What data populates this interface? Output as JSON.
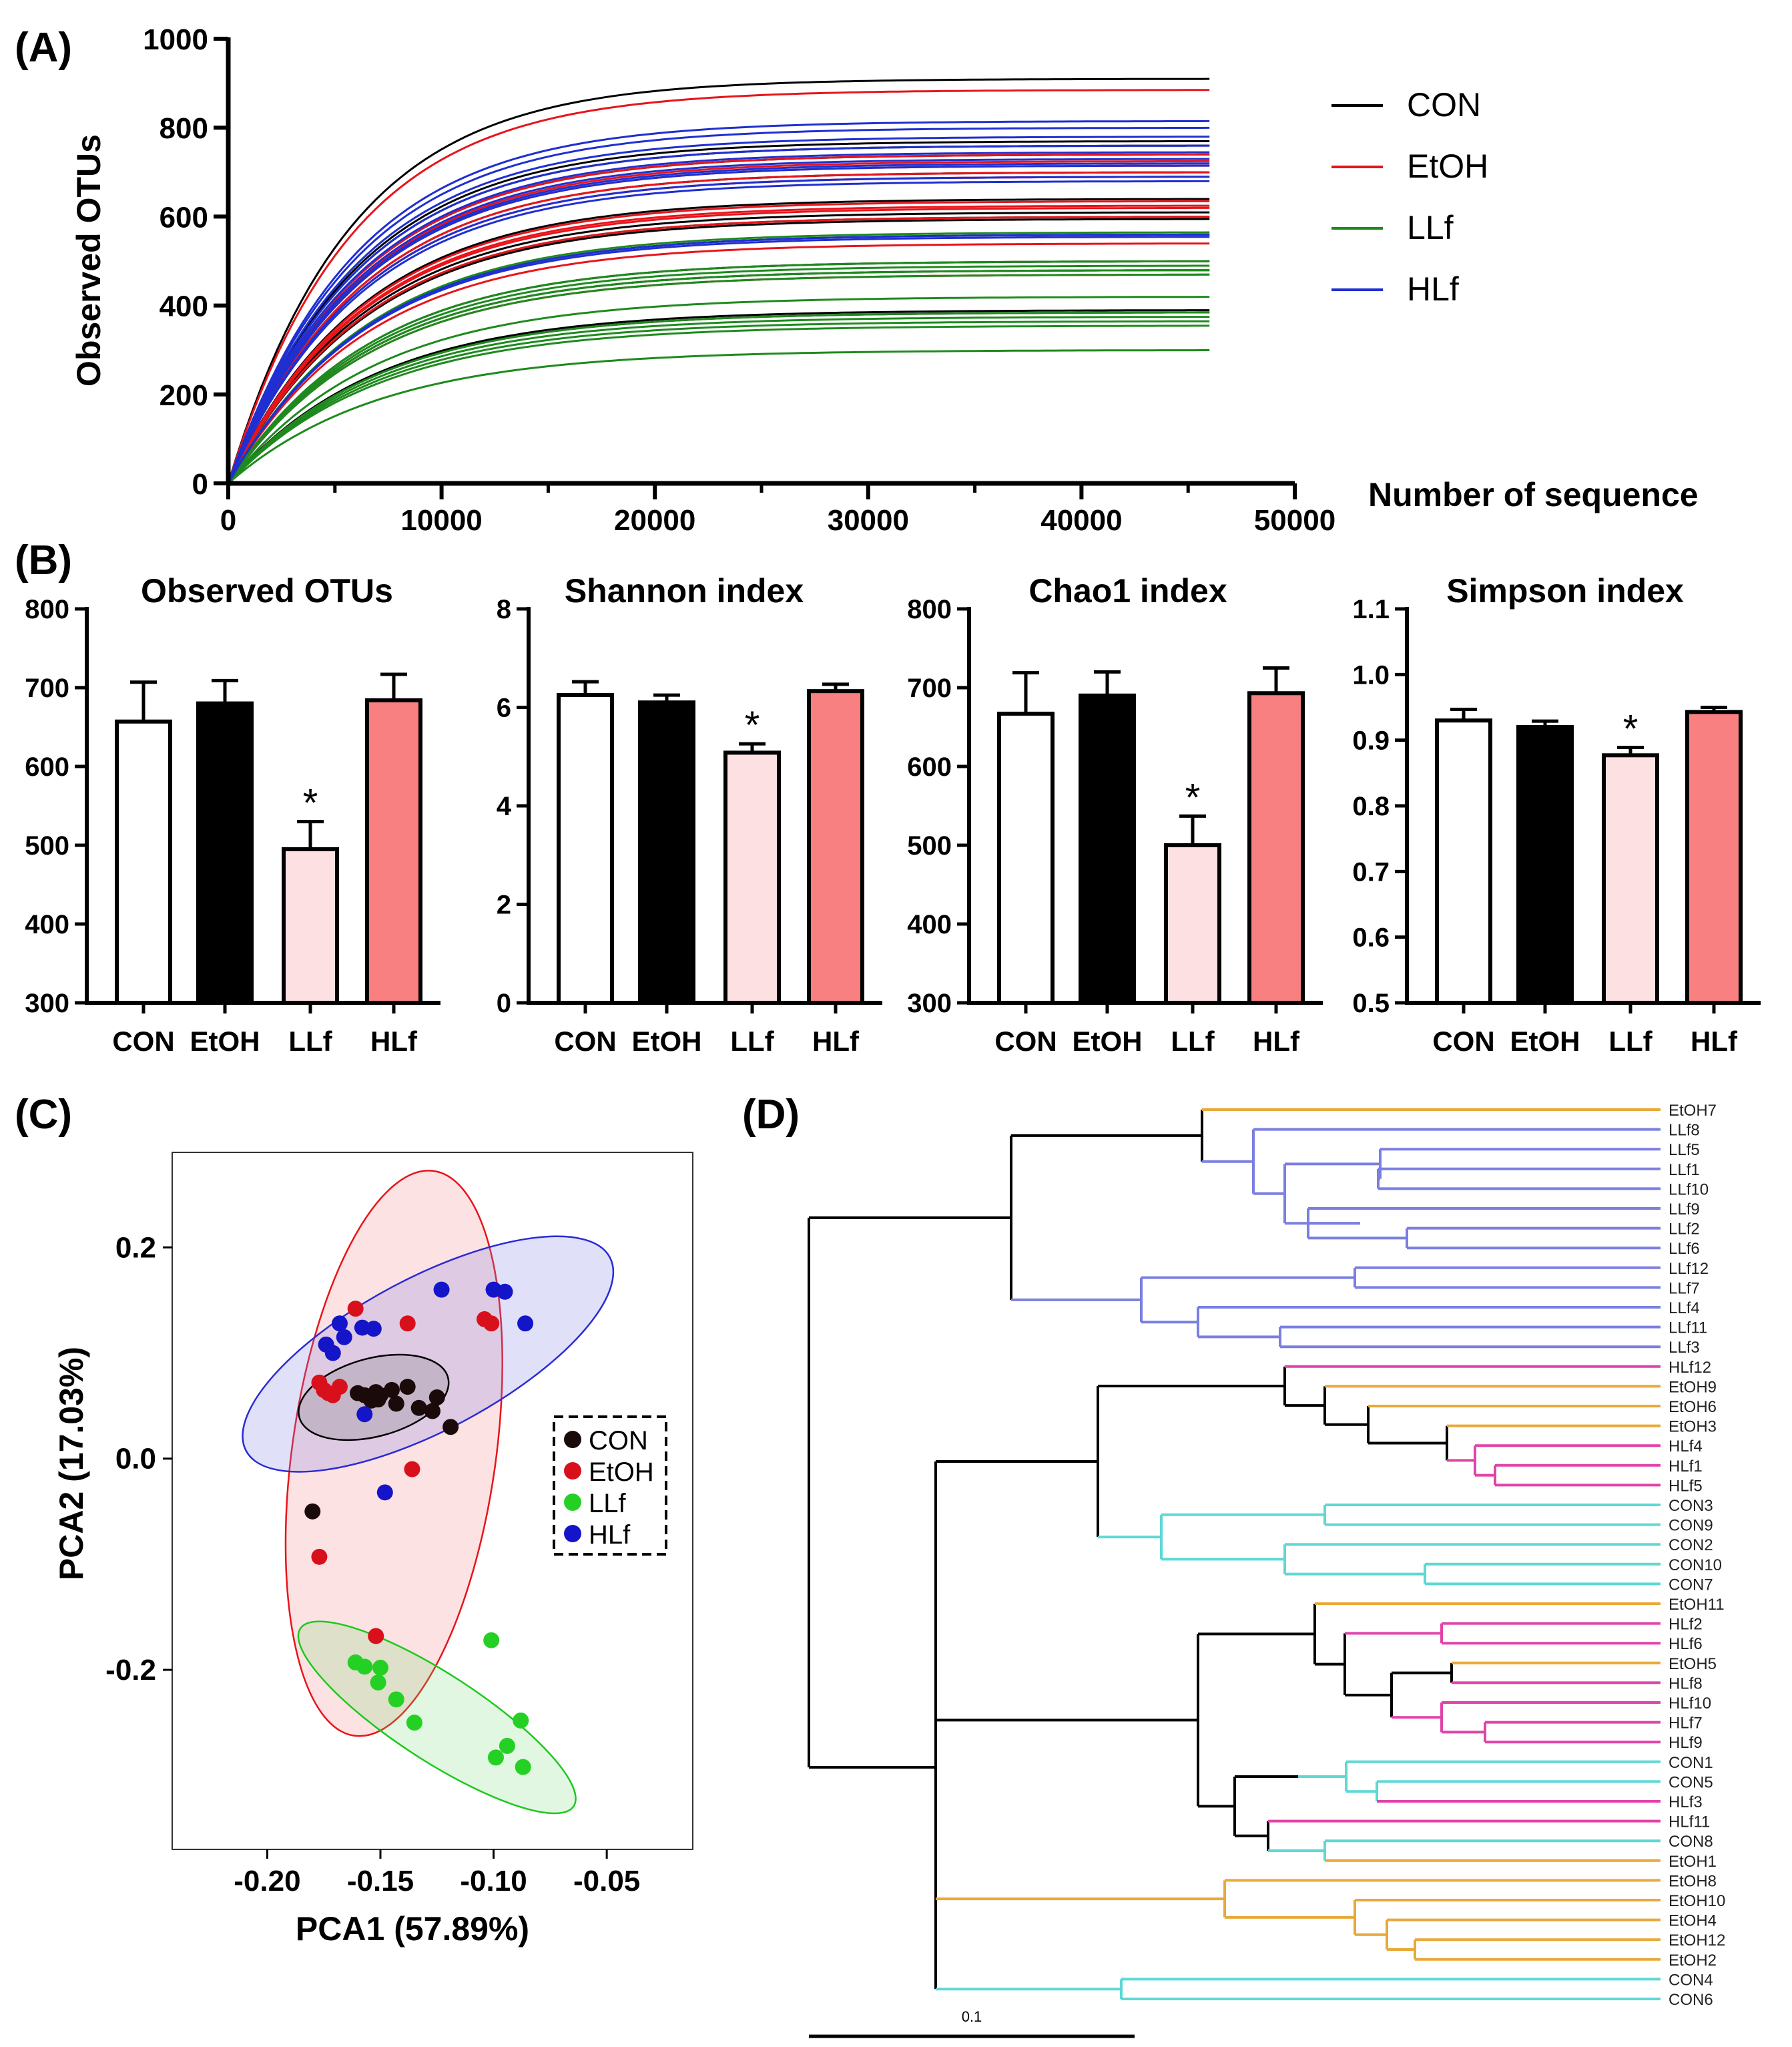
{
  "panel_labels": {
    "a": "(A)",
    "b": "(B)",
    "c": "(C)",
    "d": "(D)"
  },
  "group_colors": {
    "CON": "#000000",
    "EtOH": "#e8141b",
    "LLf": "#1e8a1e",
    "HLf": "#1f2fd1"
  },
  "chart_data": [
    {
      "id": "A",
      "type": "line",
      "title": "",
      "xlabel": "Number of sequence",
      "ylabel": "Observed OTUs",
      "xlim": [
        0,
        50000
      ],
      "ylim": [
        0,
        1000
      ],
      "xticks": [
        "0",
        "10000",
        "20000",
        "30000",
        "40000",
        "50000"
      ],
      "yticks": [
        "0",
        "200",
        "400",
        "600",
        "800",
        "1000"
      ],
      "x_max_depth": 46000,
      "legend": [
        "CON",
        "EtOH",
        "LLf",
        "HLf"
      ],
      "series": [
        {
          "group": "CON",
          "plateaus": [
            910,
            770,
            760,
            740,
            700,
            640,
            610,
            600,
            595,
            560,
            500,
            480,
            390,
            385
          ]
        },
        {
          "group": "EtOH",
          "plateaus": [
            885,
            740,
            725,
            715,
            700,
            690,
            635,
            625,
            620,
            600,
            540,
            470
          ]
        },
        {
          "group": "LLf",
          "plateaus": [
            565,
            500,
            490,
            480,
            470,
            420,
            385,
            375,
            365,
            355,
            300
          ]
        },
        {
          "group": "HLf",
          "plateaus": [
            815,
            800,
            780,
            760,
            745,
            730,
            720,
            715,
            690,
            680,
            560,
            555
          ]
        }
      ]
    },
    {
      "id": "B1",
      "type": "bar",
      "title": "Observed OTUs",
      "categories": [
        "CON",
        "EtOH",
        "LLf",
        "HLf"
      ],
      "values": [
        657,
        680,
        495,
        684
      ],
      "errors": [
        50,
        29,
        35,
        33
      ],
      "ylim": [
        300,
        800
      ],
      "yticks": [
        "300",
        "400",
        "500",
        "600",
        "700",
        "800"
      ],
      "significance": [
        "",
        "",
        "*",
        ""
      ]
    },
    {
      "id": "B2",
      "type": "bar",
      "title": "Shannon index",
      "categories": [
        "CON",
        "EtOH",
        "LLf",
        "HLf"
      ],
      "values": [
        6.25,
        6.1,
        5.08,
        6.33
      ],
      "errors": [
        0.27,
        0.15,
        0.18,
        0.14
      ],
      "ylim": [
        0,
        8
      ],
      "yticks": [
        "0",
        "2",
        "4",
        "6",
        "8"
      ],
      "significance": [
        "",
        "",
        "*",
        ""
      ]
    },
    {
      "id": "B3",
      "type": "bar",
      "title": "Chao1 index",
      "categories": [
        "CON",
        "EtOH",
        "LLf",
        "HLf"
      ],
      "values": [
        667,
        690,
        500,
        693
      ],
      "errors": [
        52,
        30,
        37,
        32
      ],
      "ylim": [
        300,
        800
      ],
      "yticks": [
        "300",
        "400",
        "500",
        "600",
        "700",
        "800"
      ],
      "significance": [
        "",
        "",
        "*",
        ""
      ]
    },
    {
      "id": "B4",
      "type": "bar",
      "title": "Simpson index",
      "categories": [
        "CON",
        "EtOH",
        "LLf",
        "HLf"
      ],
      "values": [
        0.93,
        0.92,
        0.877,
        0.943
      ],
      "errors": [
        0.017,
        0.009,
        0.012,
        0.007
      ],
      "ylim": [
        0.5,
        1.1
      ],
      "yticks": [
        "0.5",
        "0.6",
        "0.7",
        "0.8",
        "0.9",
        "1.0",
        "1.1"
      ],
      "significance": [
        "",
        "",
        "*",
        ""
      ]
    },
    {
      "id": "C",
      "type": "scatter",
      "xlabel": "PCA1 (57.89%)",
      "ylabel": "PCA2 (17.03%)",
      "xlim": [
        -0.242,
        -0.012
      ],
      "ylim": [
        -0.37,
        0.29
      ],
      "xticks": [
        -0.2,
        -0.15,
        -0.1,
        -0.05
      ],
      "xtick_labels": [
        "-0.20",
        "-0.15",
        "-0.10",
        "-0.05"
      ],
      "yticks": [
        -0.2,
        0.0,
        0.2
      ],
      "ytick_labels": [
        "-0.2",
        "0.0",
        "0.2"
      ],
      "legend": [
        "CON",
        "EtOH",
        "LLf",
        "HLf"
      ],
      "points": {
        "CON": [
          [
            -0.16,
            0.062
          ],
          [
            -0.157,
            0.06
          ],
          [
            -0.154,
            0.055
          ],
          [
            -0.152,
            0.063
          ],
          [
            -0.151,
            0.056
          ],
          [
            -0.145,
            0.065
          ],
          [
            -0.143,
            0.052
          ],
          [
            -0.138,
            0.068
          ],
          [
            -0.133,
            0.048
          ],
          [
            -0.125,
            0.058
          ],
          [
            -0.119,
            0.03
          ],
          [
            -0.127,
            0.045
          ],
          [
            -0.15,
            0.06
          ],
          [
            -0.18,
            -0.05
          ]
        ],
        "EtOH": [
          [
            -0.161,
            0.142
          ],
          [
            -0.177,
            0.072
          ],
          [
            -0.175,
            0.065
          ],
          [
            -0.173,
            0.062
          ],
          [
            -0.171,
            0.06
          ],
          [
            -0.168,
            0.068
          ],
          [
            -0.138,
            0.128
          ],
          [
            -0.104,
            0.132
          ],
          [
            -0.101,
            0.128
          ],
          [
            -0.136,
            -0.01
          ],
          [
            -0.177,
            -0.093
          ],
          [
            -0.152,
            -0.168
          ]
        ],
        "LLf": [
          [
            -0.161,
            -0.193
          ],
          [
            -0.157,
            -0.197
          ],
          [
            -0.15,
            -0.198
          ],
          [
            -0.151,
            -0.212
          ],
          [
            -0.143,
            -0.228
          ],
          [
            -0.135,
            -0.25
          ],
          [
            -0.101,
            -0.172
          ],
          [
            -0.088,
            -0.248
          ],
          [
            -0.094,
            -0.272
          ],
          [
            -0.099,
            -0.283
          ],
          [
            -0.087,
            -0.292
          ]
        ],
        "HLf": [
          [
            -0.168,
            0.128
          ],
          [
            -0.166,
            0.115
          ],
          [
            -0.158,
            0.124
          ],
          [
            -0.153,
            0.123
          ],
          [
            -0.174,
            0.108
          ],
          [
            -0.171,
            0.1
          ],
          [
            -0.123,
            0.16
          ],
          [
            -0.1,
            0.16
          ],
          [
            -0.095,
            0.158
          ],
          [
            -0.086,
            0.128
          ],
          [
            -0.157,
            0.042
          ],
          [
            -0.148,
            -0.032
          ]
        ]
      },
      "ellipses": [
        {
          "group": "EtOH",
          "cx": -0.144,
          "cy": 0.005,
          "rx": 0.045,
          "ry": 0.27,
          "angle_deg": 8
        },
        {
          "group": "HLf",
          "cx": -0.129,
          "cy": 0.099,
          "rx": 0.091,
          "ry": 0.072,
          "angle_deg": -28
        },
        {
          "group": "CON",
          "cx": -0.153,
          "cy": 0.058,
          "rx": 0.034,
          "ry": 0.037,
          "angle_deg": -15
        },
        {
          "group": "LLf",
          "cx": -0.125,
          "cy": -0.245,
          "rx": 0.072,
          "ry": 0.041,
          "angle_deg": 33
        }
      ]
    },
    {
      "id": "D",
      "type": "dendrogram",
      "scale_label": "0.1",
      "leaves": [
        {
          "label": "EtOH7",
          "group": "EtOH"
        },
        {
          "label": "LLf8",
          "group": "LLf"
        },
        {
          "label": "LLf5",
          "group": "LLf"
        },
        {
          "label": "LLf1",
          "group": "LLf"
        },
        {
          "label": "LLf10",
          "group": "LLf"
        },
        {
          "label": "LLf9",
          "group": "LLf"
        },
        {
          "label": "LLf2",
          "group": "LLf"
        },
        {
          "label": "LLf6",
          "group": "LLf"
        },
        {
          "label": "LLf12",
          "group": "LLf"
        },
        {
          "label": "LLf7",
          "group": "LLf"
        },
        {
          "label": "LLf4",
          "group": "LLf"
        },
        {
          "label": "LLf11",
          "group": "LLf"
        },
        {
          "label": "LLf3",
          "group": "LLf"
        },
        {
          "label": "HLf12",
          "group": "HLf"
        },
        {
          "label": "EtOH9",
          "group": "EtOH"
        },
        {
          "label": "EtOH6",
          "group": "EtOH"
        },
        {
          "label": "EtOH3",
          "group": "EtOH"
        },
        {
          "label": "HLf4",
          "group": "HLf"
        },
        {
          "label": "HLf1",
          "group": "HLf"
        },
        {
          "label": "HLf5",
          "group": "HLf"
        },
        {
          "label": "CON3",
          "group": "CON"
        },
        {
          "label": "CON9",
          "group": "CON"
        },
        {
          "label": "CON2",
          "group": "CON"
        },
        {
          "label": "CON10",
          "group": "CON"
        },
        {
          "label": "CON7",
          "group": "CON"
        },
        {
          "label": "EtOH11",
          "group": "EtOH"
        },
        {
          "label": "HLf2",
          "group": "HLf"
        },
        {
          "label": "HLf6",
          "group": "HLf"
        },
        {
          "label": "EtOH5",
          "group": "EtOH"
        },
        {
          "label": "HLf8",
          "group": "HLf"
        },
        {
          "label": "HLf10",
          "group": "HLf"
        },
        {
          "label": "HLf7",
          "group": "HLf"
        },
        {
          "label": "HLf9",
          "group": "HLf"
        },
        {
          "label": "CON1",
          "group": "CON"
        },
        {
          "label": "CON5",
          "group": "CON"
        },
        {
          "label": "HLf3",
          "group": "HLf"
        },
        {
          "label": "HLf11",
          "group": "HLf"
        },
        {
          "label": "CON8",
          "group": "CON"
        },
        {
          "label": "EtOH1",
          "group": "EtOH"
        },
        {
          "label": "EtOH8",
          "group": "EtOH"
        },
        {
          "label": "EtOH10",
          "group": "EtOH"
        },
        {
          "label": "EtOH4",
          "group": "EtOH"
        },
        {
          "label": "EtOH12",
          "group": "EtOH"
        },
        {
          "label": "EtOH2",
          "group": "EtOH"
        },
        {
          "label": "CON4",
          "group": "CON"
        },
        {
          "label": "CON6",
          "group": "CON"
        }
      ]
    }
  ]
}
